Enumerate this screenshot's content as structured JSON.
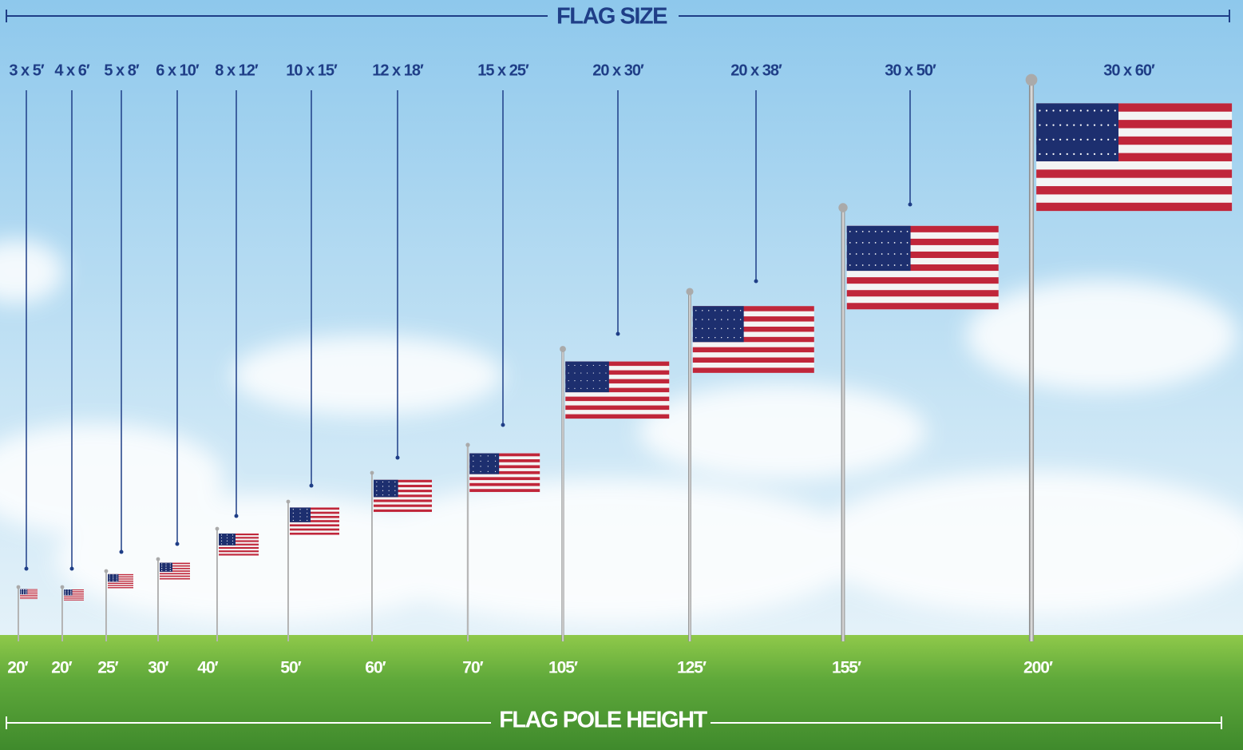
{
  "header": {
    "title": "FLAG SIZE"
  },
  "footer": {
    "title": "FLAG POLE HEIGHT"
  },
  "items": [
    {
      "flag_size": "3 x 5′",
      "pole_height": "20′"
    },
    {
      "flag_size": "4 x 6′",
      "pole_height": "20′"
    },
    {
      "flag_size": "5 x 8′",
      "pole_height": "25′"
    },
    {
      "flag_size": "6 x 10′",
      "pole_height": "30′"
    },
    {
      "flag_size": "8 x 12′",
      "pole_height": "40′"
    },
    {
      "flag_size": "10 x 15′",
      "pole_height": "50′"
    },
    {
      "flag_size": "12 x 18′",
      "pole_height": "60′"
    },
    {
      "flag_size": "15 x 25′",
      "pole_height": "70′"
    },
    {
      "flag_size": "20 x 30′",
      "pole_height": "105′"
    },
    {
      "flag_size": "20 x 38′",
      "pole_height": "125′"
    },
    {
      "flag_size": "30 x 50′",
      "pole_height": "155′"
    },
    {
      "flag_size": "30 x 60′",
      "pole_height": "200′"
    }
  ]
}
